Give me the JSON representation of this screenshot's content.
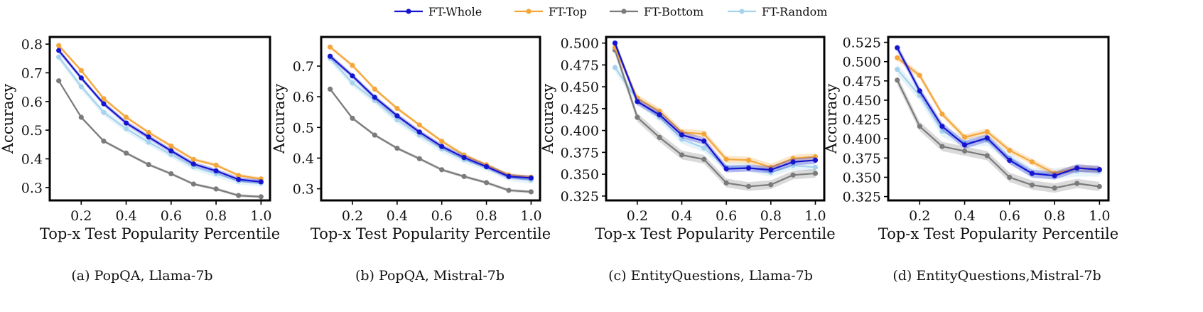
{
  "legend": [
    {
      "name": "FT-Whole",
      "color": "#1515d0"
    },
    {
      "name": "FT-Top",
      "color": "#f5a63a"
    },
    {
      "name": "FT-Bottom",
      "color": "#7b7b7b"
    },
    {
      "name": "FT-Random",
      "color": "#a6d3ec"
    }
  ],
  "chart_data": [
    {
      "type": "line",
      "caption": "(a) PopQA, Llama-7b",
      "xlabel": "Top-x Test Popularity Percentile",
      "ylabel": "Accuracy",
      "xlim": [
        0.06,
        1.04
      ],
      "ylim": [
        0.255,
        0.825
      ],
      "xticks": [
        0.2,
        0.4,
        0.6,
        0.8,
        1.0
      ],
      "xtick_labels": [
        "0.2",
        "0.4",
        "0.6",
        "0.8",
        "1.0"
      ],
      "yticks": [
        0.3,
        0.4,
        0.5,
        0.6,
        0.7,
        0.8
      ],
      "ytick_labels": [
        "0.3",
        "0.4",
        "0.5",
        "0.6",
        "0.7",
        "0.8"
      ],
      "x": [
        0.1,
        0.2,
        0.3,
        0.4,
        0.5,
        0.6,
        0.7,
        0.8,
        0.9,
        1.0
      ],
      "series": [
        {
          "name": "FT-Random",
          "values": [
            0.755,
            0.652,
            0.562,
            0.505,
            0.458,
            0.415,
            0.372,
            0.348,
            0.322,
            0.315
          ],
          "band": 0.012
        },
        {
          "name": "FT-Bottom",
          "values": [
            0.672,
            0.545,
            0.462,
            0.42,
            0.38,
            0.348,
            0.312,
            0.295,
            0.272,
            0.268
          ],
          "band": 0.005
        },
        {
          "name": "FT-Top",
          "values": [
            0.795,
            0.708,
            0.61,
            0.545,
            0.492,
            0.445,
            0.398,
            0.378,
            0.342,
            0.33
          ],
          "band": 0.006
        },
        {
          "name": "FT-Whole",
          "values": [
            0.778,
            0.682,
            0.592,
            0.525,
            0.476,
            0.428,
            0.382,
            0.358,
            0.328,
            0.32
          ],
          "band": 0.008
        }
      ]
    },
    {
      "type": "line",
      "caption": "(b) PopQA, Mistral-7b",
      "xlabel": "Top-x Test Popularity Percentile",
      "ylabel": "Accuracy",
      "xlim": [
        0.06,
        1.04
      ],
      "ylim": [
        0.262,
        0.795
      ],
      "xticks": [
        0.2,
        0.4,
        0.6,
        0.8,
        1.0
      ],
      "xtick_labels": [
        "0.2",
        "0.4",
        "0.6",
        "0.8",
        "1.0"
      ],
      "yticks": [
        0.3,
        0.4,
        0.5,
        0.6,
        0.7
      ],
      "ytick_labels": [
        "0.3",
        "0.4",
        "0.5",
        "0.6",
        "0.7"
      ],
      "x": [
        0.1,
        0.2,
        0.3,
        0.4,
        0.5,
        0.6,
        0.7,
        0.8,
        0.9,
        1.0
      ],
      "series": [
        {
          "name": "FT-Random",
          "values": [
            0.725,
            0.645,
            0.588,
            0.525,
            0.475,
            0.43,
            0.395,
            0.37,
            0.338,
            0.328
          ],
          "band": 0.012
        },
        {
          "name": "FT-Bottom",
          "values": [
            0.625,
            0.53,
            0.475,
            0.432,
            0.398,
            0.362,
            0.34,
            0.32,
            0.295,
            0.29
          ],
          "band": 0.005
        },
        {
          "name": "FT-Top",
          "values": [
            0.762,
            0.702,
            0.625,
            0.562,
            0.508,
            0.455,
            0.41,
            0.378,
            0.345,
            0.338
          ],
          "band": 0.006
        },
        {
          "name": "FT-Whole",
          "values": [
            0.732,
            0.668,
            0.598,
            0.538,
            0.485,
            0.438,
            0.402,
            0.372,
            0.34,
            0.335
          ],
          "band": 0.008
        }
      ]
    },
    {
      "type": "line",
      "caption": "(c) EntityQuestions, Llama-7b",
      "xlabel": "Top-x Test Popularity Percentile",
      "ylabel": "Accuracy",
      "xlim": [
        0.06,
        1.04
      ],
      "ylim": [
        0.32,
        0.507
      ],
      "xticks": [
        0.2,
        0.4,
        0.6,
        0.8,
        1.0
      ],
      "xtick_labels": [
        "0.2",
        "0.4",
        "0.6",
        "0.8",
        "1.0"
      ],
      "yticks": [
        0.325,
        0.35,
        0.375,
        0.4,
        0.425,
        0.45,
        0.475,
        0.5
      ],
      "ytick_labels": [
        "0.325",
        "0.350",
        "0.375",
        "0.400",
        "0.425",
        "0.450",
        "0.475",
        "0.500"
      ],
      "x": [
        0.1,
        0.2,
        0.3,
        0.4,
        0.5,
        0.6,
        0.7,
        0.8,
        0.9,
        1.0
      ],
      "series": [
        {
          "name": "FT-Random",
          "values": [
            0.472,
            0.435,
            0.415,
            0.39,
            0.38,
            0.358,
            0.358,
            0.352,
            0.36,
            0.358
          ],
          "band": 0.005
        },
        {
          "name": "FT-Bottom",
          "values": [
            0.492,
            0.415,
            0.392,
            0.372,
            0.367,
            0.34,
            0.336,
            0.338,
            0.349,
            0.351
          ],
          "band": 0.005
        },
        {
          "name": "FT-Top",
          "values": [
            0.495,
            0.437,
            0.422,
            0.398,
            0.396,
            0.367,
            0.366,
            0.358,
            0.368,
            0.37
          ],
          "band": 0.004
        },
        {
          "name": "FT-Whole",
          "values": [
            0.5,
            0.433,
            0.418,
            0.395,
            0.388,
            0.356,
            0.357,
            0.355,
            0.364,
            0.366
          ],
          "band": 0.004
        }
      ]
    },
    {
      "type": "line",
      "caption": "(d) EntityQuestions,Mistral-7b",
      "xlabel": "Top-x Test Popularity Percentile",
      "ylabel": "Accuracy",
      "xlim": [
        0.06,
        1.04
      ],
      "ylim": [
        0.32,
        0.532
      ],
      "xticks": [
        0.2,
        0.4,
        0.6,
        0.8,
        1.0
      ],
      "xtick_labels": [
        "0.2",
        "0.4",
        "0.6",
        "0.8",
        "1.0"
      ],
      "yticks": [
        0.325,
        0.35,
        0.375,
        0.4,
        0.425,
        0.45,
        0.475,
        0.5,
        0.525
      ],
      "ytick_labels": [
        "0.325",
        "0.350",
        "0.375",
        "0.400",
        "0.425",
        "0.450",
        "0.475",
        "0.500",
        "0.525"
      ],
      "x": [
        0.1,
        0.2,
        0.3,
        0.4,
        0.5,
        0.6,
        0.7,
        0.8,
        0.9,
        1.0
      ],
      "series": [
        {
          "name": "FT-Random",
          "values": [
            0.49,
            0.456,
            0.41,
            0.395,
            0.398,
            0.375,
            0.355,
            0.355,
            0.358,
            0.358
          ],
          "band": 0.007
        },
        {
          "name": "FT-Bottom",
          "values": [
            0.476,
            0.416,
            0.39,
            0.384,
            0.378,
            0.35,
            0.34,
            0.336,
            0.342,
            0.338
          ],
          "band": 0.006
        },
        {
          "name": "FT-Top",
          "values": [
            0.505,
            0.482,
            0.432,
            0.402,
            0.409,
            0.385,
            0.37,
            0.355,
            0.362,
            0.36
          ],
          "band": 0.004
        },
        {
          "name": "FT-Whole",
          "values": [
            0.518,
            0.462,
            0.416,
            0.392,
            0.401,
            0.372,
            0.355,
            0.352,
            0.362,
            0.36
          ],
          "band": 0.005
        }
      ]
    }
  ]
}
